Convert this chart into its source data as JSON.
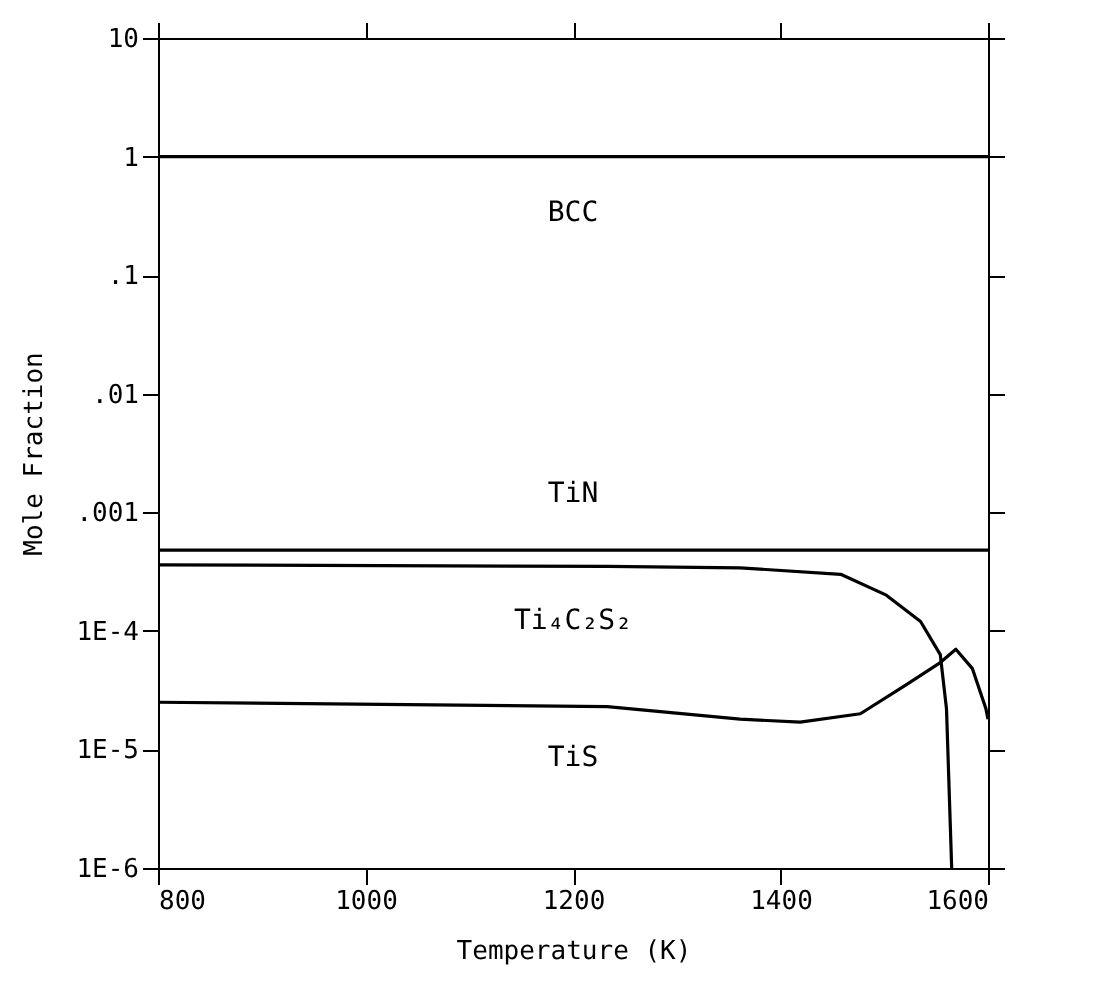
{
  "chart_data": {
    "type": "line",
    "xlabel": "Temperature (K)",
    "ylabel": "Mole Fraction",
    "log": "y",
    "grid": false,
    "marker": "none",
    "line_style": "solid",
    "xlim": [
      800,
      1600
    ],
    "xticks": [
      800,
      1000,
      1200,
      1400,
      1600
    ],
    "ylim": [
      1e-06,
      10
    ],
    "yticks": [
      {
        "value": 10,
        "label": "10"
      },
      {
        "value": 1,
        "label": "1"
      },
      {
        "value": 0.1,
        "label": ".1"
      },
      {
        "value": 0.01,
        "label": ".01"
      },
      {
        "value": 0.001,
        "label": ".001"
      },
      {
        "value": 0.0001,
        "label": "1E-4"
      },
      {
        "value": 1e-05,
        "label": "1E-5"
      },
      {
        "value": 1e-06,
        "label": "1E-6"
      }
    ],
    "series": [
      {
        "color": "#000000",
        "x": [
          800,
          1600
        ],
        "values": [
          1,
          1
        ]
      },
      {
        "color": "#000000",
        "x": [
          800,
          1600
        ],
        "values": [
          0.00048,
          0.00048
        ]
      },
      {
        "color": "#000000",
        "x": [
          800,
          1233,
          1361,
          1458,
          1502,
          1535,
          1554,
          1560,
          1565
        ],
        "values": [
          0.00036,
          0.00035,
          0.00034,
          0.0003,
          0.0002,
          0.00012,
          6.3e-05,
          2.2e-05,
          1e-06
        ]
      },
      {
        "color": "#000000",
        "x": [
          800,
          1233,
          1361,
          1419,
          1477,
          1521,
          1554,
          1569,
          1585,
          1598,
          1600
        ],
        "values": [
          2.5e-05,
          2.3e-05,
          1.8e-05,
          1.7e-05,
          2e-05,
          3.5e-05,
          5.4e-05,
          7e-05,
          4.8e-05,
          2.2e-05,
          1.8e-05
        ]
      }
    ],
    "annotations": [
      "BCC",
      "TiN",
      "Ti₄C₂S₂",
      "TiS"
    ]
  }
}
